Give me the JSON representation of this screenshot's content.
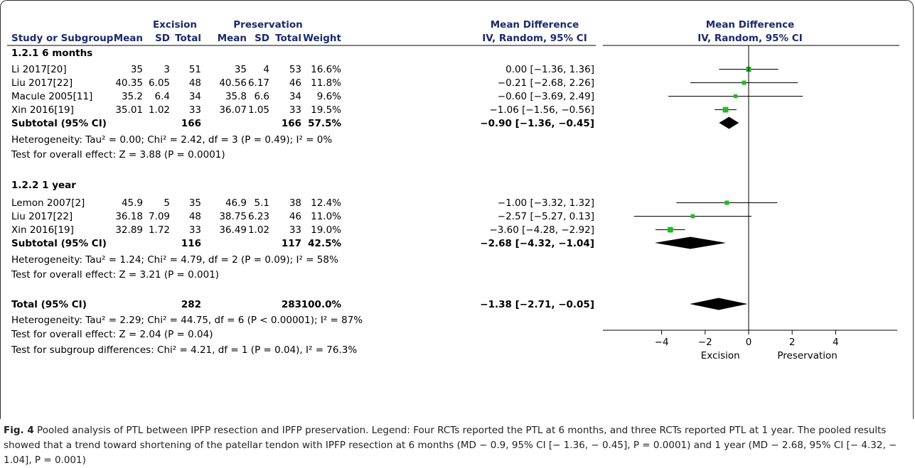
{
  "chart_data": {
    "type": "forest",
    "header": {
      "group1": "Excision",
      "group2": "Preservation",
      "effect_col_title_1": "Mean Difference",
      "effect_col_title_2": "IV, Random, 95% CI",
      "plot_title_1": "Mean Difference",
      "plot_title_2": "IV, Random, 95% CI",
      "col_study": "Study or Subgroup",
      "col_mean": "Mean",
      "col_sd": "SD",
      "col_total": "Total",
      "col_weight": "Weight"
    },
    "subgroups": [
      {
        "title": "1.2.1 6 months",
        "studies": [
          {
            "study": "Li 2017[20]",
            "e_mean": "35",
            "e_sd": "3",
            "e_total": "51",
            "p_mean": "35",
            "p_sd": "4",
            "p_total": "53",
            "weight": "16.6%",
            "ci_text": "0.00 [−1.36, 1.36]",
            "md": 0.0,
            "lo": -1.36,
            "hi": 1.36
          },
          {
            "study": "Liu 2017[22]",
            "e_mean": "40.35",
            "e_sd": "6.05",
            "e_total": "48",
            "p_mean": "40.56",
            "p_sd": "6.17",
            "p_total": "46",
            "weight": "11.8%",
            "ci_text": "−0.21 [−2.68, 2.26]",
            "md": -0.21,
            "lo": -2.68,
            "hi": 2.26
          },
          {
            "study": "Macule 2005[11]",
            "e_mean": "35.2",
            "e_sd": "6.4",
            "e_total": "34",
            "p_mean": "35.8",
            "p_sd": "6.6",
            "p_total": "34",
            "weight": "9.6%",
            "ci_text": "−0.60 [−3.69, 2.49]",
            "md": -0.6,
            "lo": -3.69,
            "hi": 2.49
          },
          {
            "study": "Xin 2016[19]",
            "e_mean": "35.01",
            "e_sd": "1.02",
            "e_total": "33",
            "p_mean": "36.07",
            "p_sd": "1.05",
            "p_total": "33",
            "weight": "19.5%",
            "ci_text": "−1.06 [−1.56, −0.56]",
            "md": -1.06,
            "lo": -1.56,
            "hi": -0.56
          }
        ],
        "subtotal": {
          "label": "Subtotal (95% CI)",
          "e_total": "166",
          "p_total": "166",
          "weight": "57.5%",
          "ci_text": "−0.90 [−1.36, −0.45]",
          "md": -0.9,
          "lo": -1.36,
          "hi": -0.45
        },
        "heterogeneity": "Heterogeneity: Tau² = 0.00; Chi² = 2.42, df = 3 (P = 0.49); I² = 0%",
        "overall": "Test for overall effect: Z = 3.88 (P = 0.0001)"
      },
      {
        "title": "1.2.2 1 year",
        "studies": [
          {
            "study": "Lemon 2007[2]",
            "e_mean": "45.9",
            "e_sd": "5",
            "e_total": "35",
            "p_mean": "46.9",
            "p_sd": "5.1",
            "p_total": "38",
            "weight": "12.4%",
            "ci_text": "−1.00 [−3.32, 1.32]",
            "md": -1.0,
            "lo": -3.32,
            "hi": 1.32
          },
          {
            "study": "Liu 2017[22]",
            "e_mean": "36.18",
            "e_sd": "7.09",
            "e_total": "48",
            "p_mean": "38.75",
            "p_sd": "6.23",
            "p_total": "46",
            "weight": "11.0%",
            "ci_text": "−2.57 [−5.27, 0.13]",
            "md": -2.57,
            "lo": -5.27,
            "hi": 0.13
          },
          {
            "study": "Xin 2016[19]",
            "e_mean": "32.89",
            "e_sd": "1.72",
            "e_total": "33",
            "p_mean": "36.49",
            "p_sd": "1.02",
            "p_total": "33",
            "weight": "19.0%",
            "ci_text": "−3.60 [−4.28, −2.92]",
            "md": -3.6,
            "lo": -4.28,
            "hi": -2.92
          }
        ],
        "subtotal": {
          "label": "Subtotal (95% CI)",
          "e_total": "116",
          "p_total": "117",
          "weight": "42.5%",
          "ci_text": "−2.68 [−4.32, −1.04]",
          "md": -2.68,
          "lo": -4.32,
          "hi": -1.04
        },
        "heterogeneity": "Heterogeneity: Tau² = 1.24; Chi² = 4.79, df = 2 (P = 0.09); I² = 58%",
        "overall": "Test for overall effect: Z = 3.21 (P = 0.001)"
      }
    ],
    "total": {
      "label": "Total (95% CI)",
      "e_total": "282",
      "p_total": "283",
      "weight": "100.0%",
      "ci_text": "−1.38 [−2.71, −0.05]",
      "md": -1.38,
      "lo": -2.71,
      "hi": -0.05
    },
    "total_heterogeneity": "Heterogeneity: Tau² = 2.29; Chi² = 44.75, df = 6 (P < 0.00001); I² = 87%",
    "total_overall": "Test for overall effect: Z = 2.04 (P = 0.04)",
    "subgroup_diff": "Test for subgroup differences: Chi² = 4.21, df = 1 (P = 0.04), I² = 76.3%",
    "x_axis": {
      "ticks": [
        -4,
        -2,
        0,
        2,
        4
      ],
      "tick_labels": [
        "−4",
        "−2",
        "0",
        "2",
        "4"
      ],
      "xlim": [
        -5.5,
        5.5
      ]
    },
    "favours_left": "Excision",
    "favours_right": "Preservation",
    "marker_color": "#22bb22"
  },
  "caption": {
    "label": "Fig. 4",
    "text": "Pooled analysis of PTL between IPFP resection and IPFP preservation. Legend: Four RCTs reported the PTL at 6 months, and three RCTs reported PTL at 1 year. The pooled results showed that a trend toward shortening of the patellar tendon with IPFP resection at 6 months (MD − 0.9, 95% CI [− 1.36, − 0.45], P = 0.0001) and 1 year (MD − 2.68, 95% CI [− 4.32, − 1.04], P = 0.001)"
  }
}
